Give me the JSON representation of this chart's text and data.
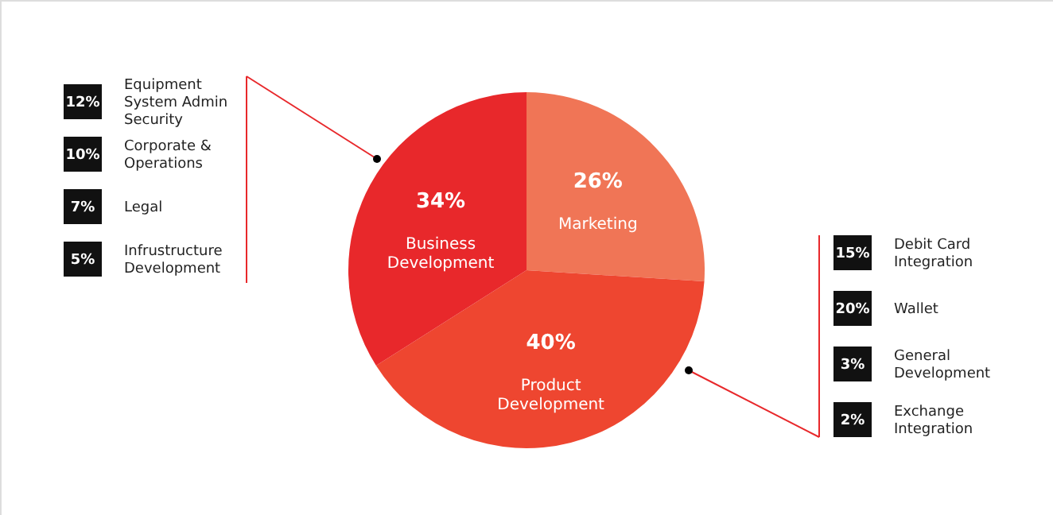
{
  "chart_data": {
    "type": "pie",
    "categories": [
      "Marketing",
      "Product Development",
      "Business Development"
    ],
    "values": [
      26,
      40,
      34
    ],
    "value_labels": [
      "26%",
      "40%",
      "34%"
    ],
    "colors": [
      "#f07556",
      "#ee4630",
      "#e8282b"
    ],
    "annotations": [
      "12% Equipment System Admin Security",
      "10% Corporate & Operations",
      "7% Legal",
      "5% Infrustructure Development",
      "15% Debit Card Integration",
      "20% Wallet",
      "3% General Development",
      "2% Exchange Integration"
    ]
  }
}
